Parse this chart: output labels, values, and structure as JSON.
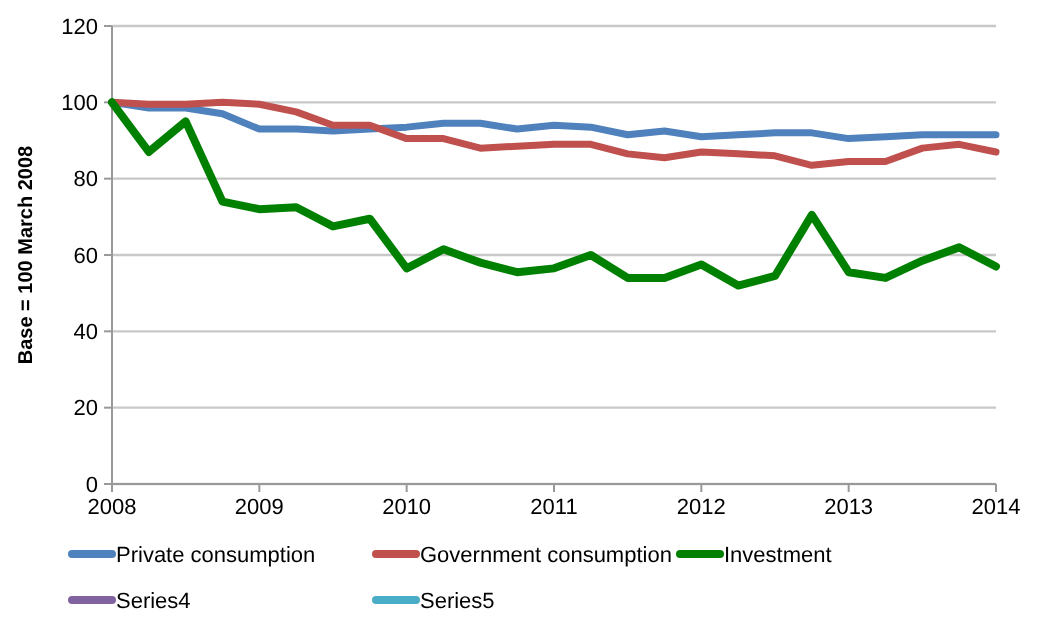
{
  "chart_data": {
    "type": "line",
    "ylabel": "Base = 100 March 2008",
    "x": [
      2008,
      2008.25,
      2008.5,
      2008.75,
      2009,
      2009.25,
      2009.5,
      2009.75,
      2010,
      2010.25,
      2010.5,
      2010.75,
      2011,
      2011.25,
      2011.5,
      2011.75,
      2012,
      2012.25,
      2012.5,
      2012.75,
      2013,
      2013.25,
      2013.5,
      2013.75,
      2014
    ],
    "series": [
      {
        "name": "Private consumption",
        "color": "#4f81bd",
        "values": [
          100,
          98.5,
          98.5,
          97,
          93,
          93,
          92.5,
          93,
          93.5,
          94.5,
          94.5,
          93,
          94,
          93.5,
          91.5,
          92.5,
          91,
          91.5,
          92,
          92,
          90.5,
          91,
          91.5,
          91.5,
          91.5
        ]
      },
      {
        "name": "Government consumption",
        "color": "#c0504d",
        "values": [
          100,
          99.5,
          99.5,
          100,
          99.5,
          97.5,
          94,
          94,
          90.5,
          90.5,
          88,
          88.5,
          89,
          89,
          86.5,
          85.5,
          87,
          86.5,
          86,
          83.5,
          84.5,
          84.5,
          88,
          89,
          87
        ]
      },
      {
        "name": "Investment",
        "color": "#008000",
        "values": [
          100,
          87,
          95,
          74,
          72,
          72.5,
          67.5,
          69.5,
          56.5,
          61.5,
          58,
          55.5,
          56.5,
          60,
          54,
          54,
          57.5,
          52,
          54.5,
          70.5,
          55.5,
          54,
          58.5,
          62,
          57
        ]
      },
      {
        "name": "Series4",
        "color": "#8064a2",
        "values": [
          null,
          null,
          null,
          null,
          null,
          null,
          null,
          null,
          null,
          null,
          null,
          null,
          null,
          null,
          null,
          null,
          null,
          null,
          null,
          null,
          null,
          null,
          null,
          null,
          null
        ]
      },
      {
        "name": "Series5",
        "color": "#4bacc6",
        "values": [
          null,
          null,
          null,
          null,
          null,
          null,
          null,
          null,
          null,
          null,
          null,
          null,
          null,
          null,
          null,
          null,
          null,
          null,
          null,
          null,
          null,
          null,
          null,
          null,
          null
        ]
      }
    ],
    "xlim": [
      2008,
      2014
    ],
    "xticks": [
      2008,
      2009,
      2010,
      2011,
      2012,
      2013,
      2014
    ],
    "ylim": [
      0,
      120
    ],
    "yticks": [
      0,
      20,
      40,
      60,
      80,
      100,
      120
    ],
    "grid": "y",
    "legend": "bottom",
    "marker": "none",
    "line_style": "solid"
  }
}
